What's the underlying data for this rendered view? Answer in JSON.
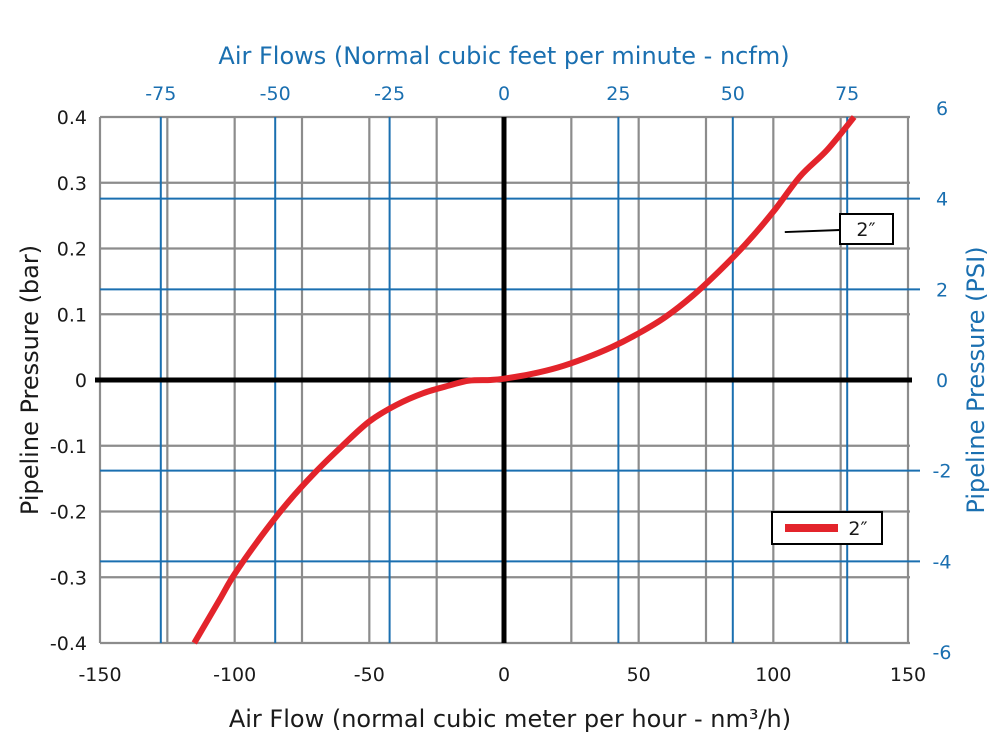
{
  "chart_data": {
    "type": "line",
    "title": "Air Flows (Normal cubic feet per minute - ncfm)",
    "xlabel": "Air Flow (normal cubic meter per hour - nm³/h)",
    "ylabel": "Pipeline Pressure (bar)",
    "y2label": "Pipeline Pressure (PSI)",
    "xlim": [
      -150,
      150
    ],
    "ylim": [
      -0.4,
      0.4
    ],
    "x_ticks": [
      -150,
      -100,
      -50,
      0,
      50,
      100,
      150
    ],
    "x_tick_labels": [
      "-150",
      "-100",
      "-50",
      "0",
      "50",
      "100",
      "150"
    ],
    "y_ticks": [
      -0.4,
      -0.3,
      -0.2,
      -0.1,
      0,
      0.1,
      0.2,
      0.3,
      0.4
    ],
    "y_tick_labels": [
      "-0.4",
      "-0.3",
      "-0.2",
      "-0.1",
      "0",
      "0.1",
      "0.2",
      "0.3",
      "0.4"
    ],
    "x2_ticks": [
      -75,
      -50,
      -25,
      0,
      25,
      50,
      75
    ],
    "x2_tick_labels": [
      "-75",
      "-50",
      "-25",
      "0",
      "25",
      "50",
      "75"
    ],
    "y2_ticks": [
      -6,
      -4,
      -2,
      0,
      2,
      4,
      6
    ],
    "y2_tick_labels": [
      "-6",
      "-4",
      "-2",
      "0",
      "2",
      "4",
      "6"
    ],
    "grid": true,
    "series": [
      {
        "name": "2″",
        "color": "#e3242b",
        "x": [
          -115,
          -110,
          -105,
          -100,
          -90,
          -80,
          -70,
          -60,
          -50,
          -40,
          -30,
          -20,
          -13,
          -5,
          0,
          10,
          20,
          30,
          40,
          50,
          60,
          70,
          80,
          90,
          100,
          110,
          120,
          130
        ],
        "y": [
          -0.4,
          -0.365,
          -0.33,
          -0.295,
          -0.237,
          -0.185,
          -0.14,
          -0.1,
          -0.063,
          -0.038,
          -0.02,
          -0.008,
          -0.001,
          0,
          0.002,
          0.009,
          0.019,
          0.033,
          0.05,
          0.071,
          0.096,
          0.128,
          0.166,
          0.208,
          0.256,
          0.31,
          0.35,
          0.4
        ]
      }
    ],
    "annotation": {
      "text": "2″",
      "x": 105,
      "y": 0.225
    },
    "legend": {
      "label": "2″",
      "position": "lower-right"
    }
  },
  "colors": {
    "grid_primary": "#8c8c8c",
    "grid_secondary": "#1a6fb0",
    "axis_zero": "#000000",
    "series": "#e3242b",
    "secondary_text": "#1a6fb0"
  }
}
